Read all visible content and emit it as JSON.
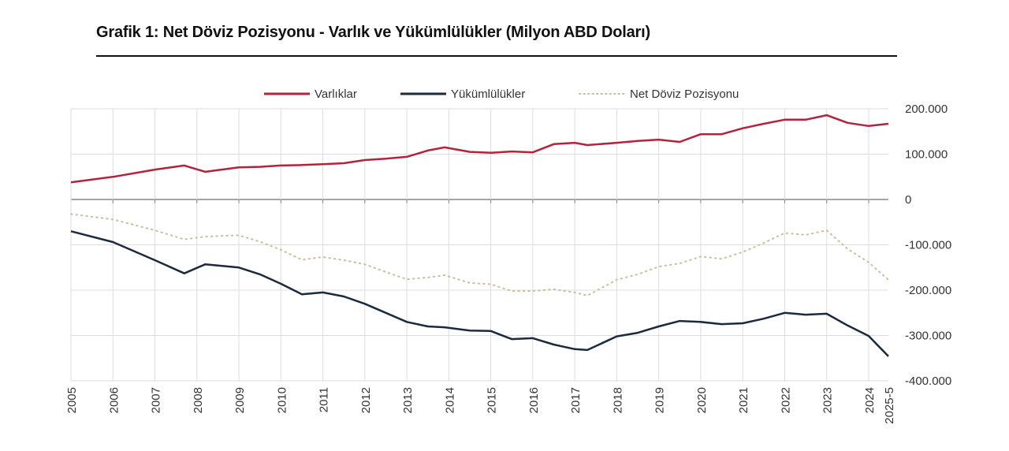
{
  "chart_data": {
    "type": "line",
    "title": "Grafik 1: Net Döviz Pozisyonu - Varlık ve Yükümlülükler (Milyon ABD Doları)",
    "xlabel": "",
    "ylabel": "",
    "x_tick_labels": [
      "2005",
      "2006",
      "2007",
      "2008",
      "2009",
      "2010",
      "2011",
      "2012",
      "2013",
      "2014",
      "2015",
      "2016",
      "2017",
      "2018",
      "2019",
      "2020",
      "2021",
      "2022",
      "2023",
      "2024",
      "2025-5"
    ],
    "x_tick_values": [
      2005,
      2006,
      2007,
      2008,
      2009,
      2010,
      2011,
      2012,
      2013,
      2014,
      2015,
      2016,
      2017,
      2018,
      2019,
      2020,
      2021,
      2022,
      2023,
      2024,
      2024.47
    ],
    "y_tick_values": [
      200000,
      100000,
      0,
      -100000,
      -200000,
      -300000,
      -400000
    ],
    "y_tick_labels": [
      "200.000",
      "100.000",
      "0",
      "-100.000",
      "-200.000",
      "-300.000",
      "-400.000"
    ],
    "xlim": [
      2005,
      2024.47
    ],
    "ylim": [
      -400000,
      200000
    ],
    "grid": true,
    "y_axis_side": "right",
    "legend_position": "top",
    "x": [
      2005,
      2006,
      2007,
      2007.7,
      2008.2,
      2009,
      2009.5,
      2010,
      2010.5,
      2011,
      2011.5,
      2012,
      2012.5,
      2013,
      2013.5,
      2013.9,
      2014.5,
      2015,
      2015.5,
      2016,
      2016.5,
      2017,
      2017.3,
      2018,
      2018.5,
      2019,
      2019.5,
      2020,
      2020.5,
      2021,
      2021.5,
      2022,
      2022.5,
      2023,
      2023.5,
      2024,
      2024.47
    ],
    "series": [
      {
        "name": "Varlıklar",
        "color": "#b3233b",
        "style": "solid",
        "values": [
          38000,
          50000,
          66000,
          75000,
          61000,
          71000,
          72000,
          75000,
          76000,
          78000,
          80000,
          87000,
          90000,
          94000,
          108000,
          115000,
          105000,
          103000,
          106000,
          104000,
          122000,
          125000,
          120000,
          125000,
          129000,
          132000,
          127000,
          144000,
          144000,
          157000,
          167000,
          176000,
          176000,
          186000,
          169000,
          162000,
          167000
        ]
      },
      {
        "name": "Yükümlülükler",
        "color": "#1b2a3d",
        "style": "solid",
        "values": [
          -70000,
          -94000,
          -134000,
          -163000,
          -143000,
          -150000,
          -165000,
          -186000,
          -209000,
          -205000,
          -214000,
          -230000,
          -250000,
          -270000,
          -280000,
          -282000,
          -289000,
          -290000,
          -308000,
          -306000,
          -320000,
          -330000,
          -332000,
          -302000,
          -294000,
          -280000,
          -268000,
          -270000,
          -275000,
          -273000,
          -263000,
          -250000,
          -254000,
          -252000,
          -278000,
          -301000,
          -346000
        ]
      },
      {
        "name": "Net Döviz Pozisyonu",
        "color": "#c9bf9c",
        "style": "dotted",
        "values": [
          -32000,
          -44000,
          -68000,
          -88000,
          -82000,
          -79000,
          -93000,
          -111000,
          -133000,
          -127000,
          -134000,
          -143000,
          -160000,
          -176000,
          -172000,
          -167000,
          -184000,
          -187000,
          -202000,
          -202000,
          -198000,
          -205000,
          -212000,
          -177000,
          -165000,
          -148000,
          -141000,
          -126000,
          -131000,
          -116000,
          -96000,
          -74000,
          -78000,
          -68000,
          -109000,
          -139000,
          -177000
        ]
      }
    ]
  }
}
